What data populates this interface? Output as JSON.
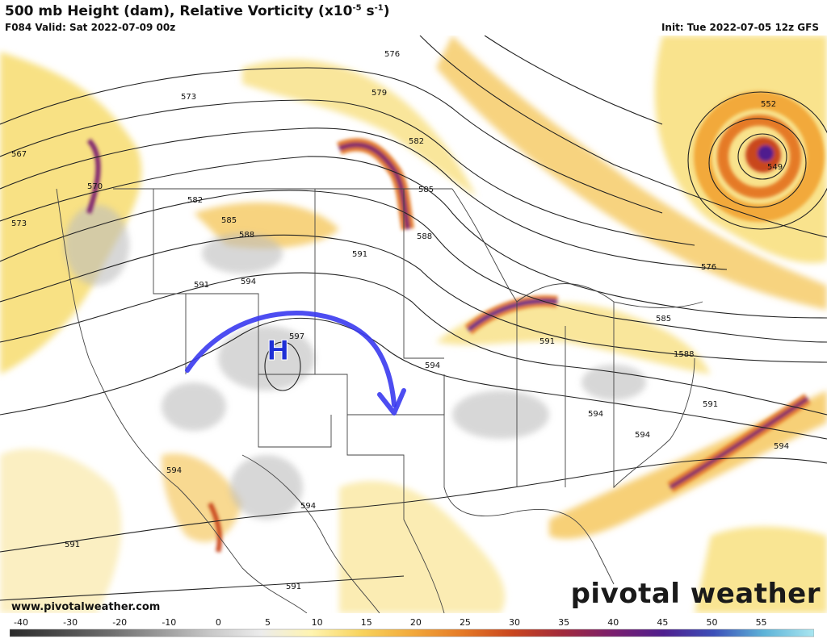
{
  "header": {
    "title_main": "500 mb Height (dam), Relative Vorticity (x10",
    "title_exp": "-5",
    "title_unit": " s",
    "title_unit_exp": "-1",
    "title_close": ")",
    "valid": "F084 Valid: Sat 2022-07-09 00z",
    "init": "Init: Tue 2022-07-05 12z GFS"
  },
  "map": {
    "high_label": "H",
    "contour_labels": [
      "576",
      "579",
      "582",
      "585",
      "588",
      "573",
      "570",
      "567",
      "573",
      "582",
      "585",
      "588",
      "591",
      "594",
      "597",
      "594",
      "594",
      "591",
      "591",
      "594",
      "594",
      "594",
      "576",
      "585",
      "1588",
      "591",
      "552",
      "549",
      "591",
      "594",
      "591"
    ],
    "colors": {
      "vort_yellow": "#f7dc6f",
      "vort_orange": "#f0a030",
      "vort_red": "#c84a20",
      "vort_purple": "#5b1e8c",
      "arrow_blue": "#3a3af0",
      "high_blue": "#1e2fd6",
      "contour": "#222222"
    }
  },
  "footer": {
    "site": "www.pivotalweather.com",
    "brand": "pivotal weather"
  },
  "colorbar": {
    "ticks": [
      "-40",
      "-30",
      "-20",
      "-10",
      "0",
      "5",
      "10",
      "15",
      "20",
      "25",
      "30",
      "35",
      "40",
      "45",
      "50",
      "55"
    ],
    "stops": [
      "#2b2b2b",
      "#4a4a4a",
      "#6d6d6d",
      "#9a9a9a",
      "#c8c8c8",
      "#ececec",
      "#fff4b0",
      "#f8d35c",
      "#f2a93b",
      "#e57a27",
      "#c9461f",
      "#a12a3c",
      "#7a1f6e",
      "#4f1f8e",
      "#3c4fb8",
      "#5db3d8",
      "#a9e6f0"
    ]
  }
}
